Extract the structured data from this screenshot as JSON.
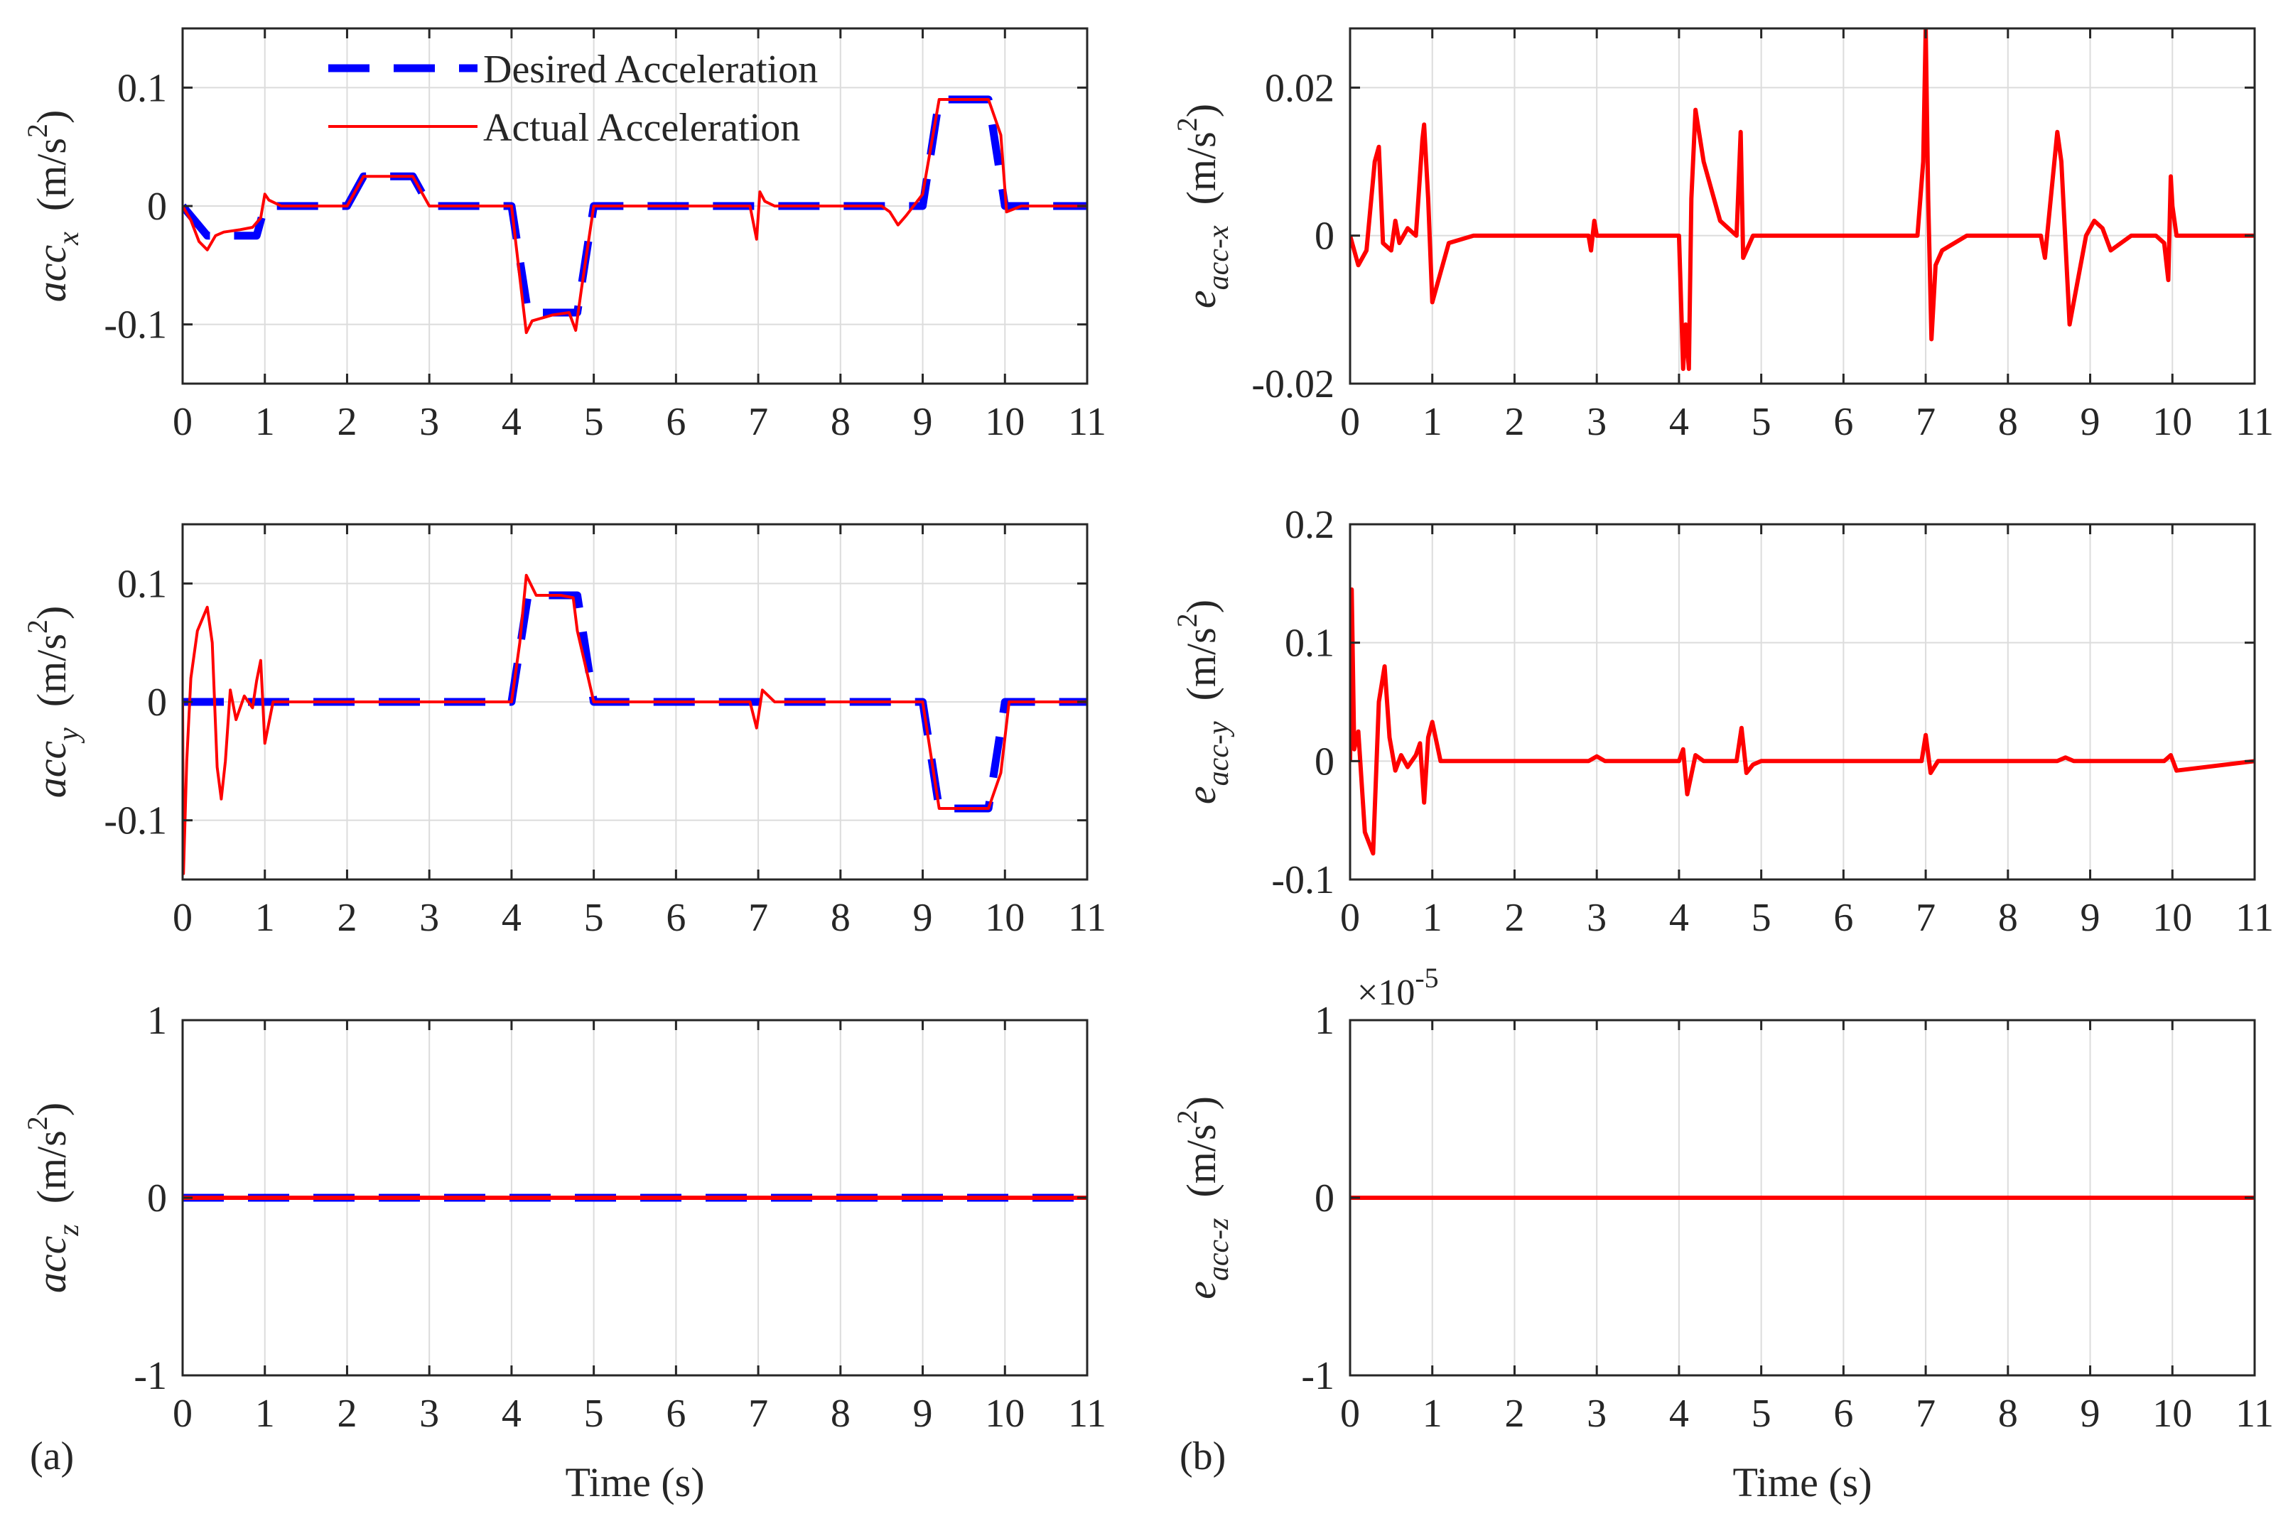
{
  "figure": {
    "panel_labels": [
      "(a)",
      "(b)"
    ],
    "colors": {
      "desired": "#0000ff",
      "actual": "#ff0000",
      "grid": "#dcdcdc",
      "axis": "#262626"
    }
  },
  "chart_data": [
    {
      "id": "acc_x",
      "type": "line",
      "panel": "(a)",
      "ylabel_main": "acc",
      "ylabel_sub": "x",
      "ylabel_unit": "(m/s",
      "ylabel_sup": "2",
      "ylabel_close": ")",
      "xlabel": "",
      "xlim": [
        0,
        11
      ],
      "ylim": [
        -0.15,
        0.15
      ],
      "xticks": [
        "0",
        "1",
        "2",
        "3",
        "4",
        "5",
        "6",
        "7",
        "8",
        "9",
        "10",
        "11"
      ],
      "yticks": [
        {
          "v": -0.1,
          "label": "-0.1"
        },
        {
          "v": 0,
          "label": "0"
        },
        {
          "v": 0.1,
          "label": "0.1"
        }
      ],
      "grid": true,
      "legend": {
        "position": "top-left",
        "entries": [
          "Desired Acceleration",
          "Actual Acceleration"
        ]
      },
      "series": [
        {
          "name": "Desired Acceleration",
          "style": "dashed",
          "color": "#0000ff",
          "x": [
            0,
            0.3,
            0.9,
            1.0,
            2.0,
            2.2,
            2.8,
            3.0,
            4.0,
            4.2,
            4.8,
            5.0,
            9.0,
            9.2,
            9.8,
            10.0,
            11.0
          ],
          "y": [
            0,
            -0.025,
            -0.025,
            0,
            0,
            0.025,
            0.025,
            0,
            0,
            -0.09,
            -0.09,
            0,
            0,
            0.09,
            0.09,
            0,
            0
          ]
        },
        {
          "name": "Actual Acceleration",
          "style": "solid",
          "color": "#ff0000",
          "x": [
            0,
            0.1,
            0.2,
            0.3,
            0.4,
            0.5,
            0.7,
            0.85,
            0.95,
            1.0,
            1.05,
            1.2,
            2.0,
            2.2,
            2.8,
            3.0,
            4.0,
            4.1,
            4.18,
            4.25,
            4.5,
            4.7,
            4.78,
            4.85,
            5.0,
            6.9,
            6.98,
            7.02,
            7.08,
            7.2,
            8.5,
            8.6,
            8.7,
            8.8,
            9.0,
            9.1,
            9.2,
            9.5,
            9.8,
            9.95,
            10.02,
            10.2,
            11.0
          ],
          "y": [
            0,
            -0.012,
            -0.03,
            -0.037,
            -0.025,
            -0.022,
            -0.02,
            -0.018,
            -0.01,
            0.01,
            0.005,
            0,
            0,
            0.025,
            0.025,
            0,
            0,
            -0.06,
            -0.107,
            -0.097,
            -0.092,
            -0.09,
            -0.105,
            -0.07,
            0,
            0,
            -0.028,
            0.012,
            0.004,
            0,
            0,
            -0.005,
            -0.016,
            -0.008,
            0.01,
            0.05,
            0.09,
            0.09,
            0.09,
            0.06,
            -0.005,
            0,
            0
          ]
        }
      ]
    },
    {
      "id": "acc_y",
      "type": "line",
      "panel": "(a)",
      "ylabel_main": "acc",
      "ylabel_sub": "y",
      "ylabel_unit": "(m/s",
      "ylabel_sup": "2",
      "ylabel_close": ")",
      "xlabel": "",
      "xlim": [
        0,
        11
      ],
      "ylim": [
        -0.15,
        0.15
      ],
      "xticks": [
        "0",
        "1",
        "2",
        "3",
        "4",
        "5",
        "6",
        "7",
        "8",
        "9",
        "10",
        "11"
      ],
      "yticks": [
        {
          "v": -0.1,
          "label": "-0.1"
        },
        {
          "v": 0,
          "label": "0"
        },
        {
          "v": 0.1,
          "label": "0.1"
        }
      ],
      "grid": true,
      "series": [
        {
          "name": "Desired Acceleration",
          "style": "dashed",
          "color": "#0000ff",
          "x": [
            0,
            4.0,
            4.2,
            4.8,
            5.0,
            9.0,
            9.2,
            9.8,
            10.0,
            11.0
          ],
          "y": [
            0,
            0,
            0.09,
            0.09,
            0,
            0,
            -0.09,
            -0.09,
            0,
            0
          ]
        },
        {
          "name": "Actual Acceleration",
          "style": "solid",
          "color": "#ff0000",
          "x": [
            0,
            0.01,
            0.05,
            0.1,
            0.18,
            0.3,
            0.36,
            0.42,
            0.47,
            0.52,
            0.58,
            0.65,
            0.75,
            0.85,
            0.9,
            0.95,
            1.0,
            1.1,
            1.3,
            2.0,
            3.0,
            4.0,
            4.1,
            4.18,
            4.3,
            4.6,
            4.75,
            4.8,
            4.9,
            5.0,
            6.9,
            6.98,
            7.05,
            7.2,
            9.0,
            9.2,
            9.8,
            9.95,
            10.05,
            11.0
          ],
          "y": [
            0,
            -0.145,
            -0.05,
            0.02,
            0.06,
            0.08,
            0.05,
            -0.055,
            -0.082,
            -0.05,
            0.01,
            -0.015,
            0.005,
            -0.005,
            0.018,
            0.035,
            -0.035,
            0,
            0,
            0,
            0,
            0,
            0.05,
            0.107,
            0.09,
            0.09,
            0.088,
            0.06,
            0.03,
            0,
            0,
            -0.022,
            0.01,
            0,
            0,
            -0.09,
            -0.09,
            -0.06,
            0,
            0
          ]
        }
      ]
    },
    {
      "id": "acc_z",
      "type": "line",
      "panel": "(a)",
      "ylabel_main": "acc",
      "ylabel_sub": "z",
      "ylabel_unit": "(m/s",
      "ylabel_sup": "2",
      "ylabel_close": ")",
      "xlabel": "Time (s)",
      "xlim": [
        0,
        11
      ],
      "ylim": [
        -1,
        1
      ],
      "xticks": [
        "0",
        "1",
        "2",
        "3",
        "4",
        "5",
        "6",
        "7",
        "8",
        "9",
        "10",
        "11"
      ],
      "yticks": [
        {
          "v": -1,
          "label": "-1"
        },
        {
          "v": 0,
          "label": "0"
        },
        {
          "v": 1,
          "label": "1"
        }
      ],
      "grid": true,
      "series": [
        {
          "name": "Desired Acceleration",
          "style": "dashed",
          "color": "#0000ff",
          "x": [
            0,
            11
          ],
          "y": [
            0,
            0
          ]
        },
        {
          "name": "Actual Acceleration",
          "style": "solid",
          "color": "#ff0000",
          "x": [
            0,
            11
          ],
          "y": [
            0,
            0
          ]
        }
      ]
    },
    {
      "id": "e_acc_x",
      "type": "line",
      "panel": "(b)",
      "ylabel_main": "e",
      "ylabel_sub": "acc-x",
      "ylabel_unit": "(m/s",
      "ylabel_sup": "2",
      "ylabel_close": ")",
      "xlabel": "",
      "xlim": [
        0,
        11
      ],
      "ylim": [
        -0.02,
        0.028
      ],
      "xticks": [
        "0",
        "1",
        "2",
        "3",
        "4",
        "5",
        "6",
        "7",
        "8",
        "9",
        "10",
        "11"
      ],
      "yticks": [
        {
          "v": -0.02,
          "label": "-0.02"
        },
        {
          "v": 0,
          "label": "0"
        },
        {
          "v": 0.02,
          "label": "0.02"
        }
      ],
      "grid": true,
      "series": [
        {
          "name": "",
          "style": "solid",
          "color": "#ff0000",
          "x": [
            0,
            0.1,
            0.2,
            0.3,
            0.35,
            0.4,
            0.5,
            0.55,
            0.6,
            0.7,
            0.8,
            0.88,
            0.9,
            0.95,
            1.0,
            1.05,
            1.2,
            1.5,
            2.0,
            2.9,
            2.93,
            2.97,
            3.0,
            3.1,
            4.0,
            4.05,
            4.08,
            4.12,
            4.15,
            4.2,
            4.3,
            4.5,
            4.7,
            4.75,
            4.78,
            4.82,
            4.9,
            5.0,
            6.9,
            6.97,
            7.0,
            7.03,
            7.07,
            7.12,
            7.2,
            7.5,
            8.4,
            8.45,
            8.6,
            8.65,
            8.75,
            8.85,
            8.95,
            9.05,
            9.15,
            9.25,
            9.5,
            9.8,
            9.9,
            9.95,
            9.98,
            10.0,
            10.05,
            10.2,
            11.0
          ],
          "y": [
            0,
            -0.004,
            -0.002,
            0.01,
            0.012,
            -0.001,
            -0.002,
            0.002,
            -0.001,
            0.001,
            0.0,
            0.013,
            0.015,
            0.005,
            -0.009,
            -0.007,
            -0.001,
            0,
            0,
            0,
            -0.002,
            0.002,
            0,
            0,
            0,
            -0.018,
            -0.012,
            -0.018,
            0.005,
            0.017,
            0.01,
            0.002,
            0,
            0.014,
            -0.003,
            -0.002,
            0,
            0,
            0,
            0.01,
            0.028,
            0.005,
            -0.014,
            -0.004,
            -0.002,
            0,
            0,
            -0.003,
            0.014,
            0.01,
            -0.012,
            -0.006,
            0,
            0.002,
            0.001,
            -0.002,
            0,
            0,
            -0.001,
            -0.006,
            0.008,
            0.004,
            0,
            0,
            0
          ]
        }
      ]
    },
    {
      "id": "e_acc_y",
      "type": "line",
      "panel": "(b)",
      "ylabel_main": "e",
      "ylabel_sub": "acc-y",
      "ylabel_unit": "(m/s",
      "ylabel_sup": "2",
      "ylabel_close": ")",
      "xlabel": "",
      "xlim": [
        0,
        11
      ],
      "ylim": [
        -0.1,
        0.2
      ],
      "xticks": [
        "0",
        "1",
        "2",
        "3",
        "4",
        "5",
        "6",
        "7",
        "8",
        "9",
        "10",
        "11"
      ],
      "yticks": [
        {
          "v": -0.1,
          "label": "-0.1"
        },
        {
          "v": 0,
          "label": "0"
        },
        {
          "v": 0.1,
          "label": "0.1"
        },
        {
          "v": 0.2,
          "label": "0.2"
        }
      ],
      "grid": true,
      "series": [
        {
          "name": "",
          "style": "solid",
          "color": "#ff0000",
          "x": [
            0,
            0.02,
            0.05,
            0.1,
            0.18,
            0.28,
            0.35,
            0.42,
            0.48,
            0.55,
            0.62,
            0.7,
            0.8,
            0.85,
            0.9,
            0.95,
            1.0,
            1.1,
            1.3,
            2.0,
            2.9,
            3.0,
            3.1,
            4.0,
            4.05,
            4.1,
            4.2,
            4.3,
            4.7,
            4.76,
            4.82,
            4.9,
            5.0,
            6.95,
            7.0,
            7.06,
            7.15,
            8.6,
            8.7,
            8.8,
            9.9,
            9.98,
            10.05,
            11.0
          ],
          "y": [
            0,
            0.145,
            0.01,
            0.025,
            -0.06,
            -0.078,
            0.05,
            0.08,
            0.02,
            -0.008,
            0.005,
            -0.005,
            0.005,
            0.015,
            -0.035,
            0.02,
            0.033,
            0,
            0,
            0,
            0,
            0.004,
            0,
            0,
            0.01,
            -0.028,
            0.005,
            0,
            0,
            0.028,
            -0.01,
            -0.003,
            0,
            0,
            0.022,
            -0.01,
            0,
            0,
            0.003,
            0,
            0,
            0.005,
            -0.008,
            0
          ]
        }
      ]
    },
    {
      "id": "e_acc_z",
      "type": "line",
      "panel": "(b)",
      "ylabel_main": "e",
      "ylabel_sub": "acc-z",
      "ylabel_unit": "(m/s",
      "ylabel_sup": "2",
      "ylabel_close": ")",
      "xlabel": "Time (s)",
      "xlim": [
        0,
        11
      ],
      "ylim": [
        -1,
        1
      ],
      "exponent_base": "×10",
      "exponent_power": "-5",
      "xticks": [
        "0",
        "1",
        "2",
        "3",
        "4",
        "5",
        "6",
        "7",
        "8",
        "9",
        "10",
        "11"
      ],
      "yticks": [
        {
          "v": -1,
          "label": "-1"
        },
        {
          "v": 0,
          "label": "0"
        },
        {
          "v": 1,
          "label": "1"
        }
      ],
      "grid": true,
      "series": [
        {
          "name": "",
          "style": "solid",
          "color": "#ff0000",
          "x": [
            0,
            11
          ],
          "y": [
            0,
            0
          ]
        }
      ]
    }
  ]
}
